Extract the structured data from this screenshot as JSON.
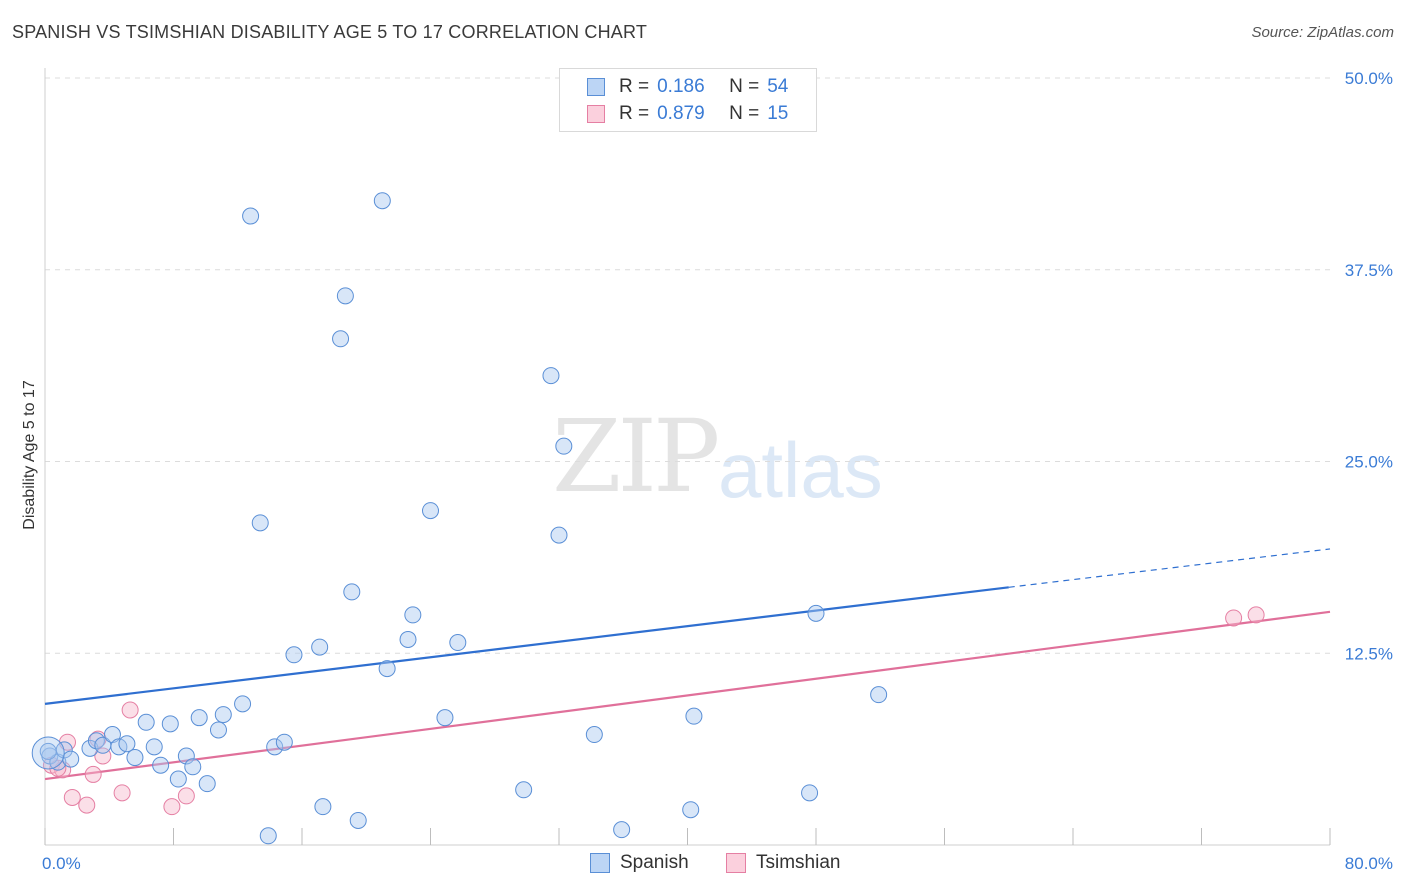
{
  "title": "SPANISH VS TSIMSHIAN DISABILITY AGE 5 TO 17 CORRELATION CHART",
  "source": "Source: ZipAtlas.com",
  "watermark": {
    "zip": "ZIP",
    "atlas": "atlas"
  },
  "legend": {
    "rows": [
      {
        "r_label": "R =",
        "r_value": "0.186",
        "n_label": "N =",
        "n_value": "54"
      },
      {
        "r_label": "R =",
        "r_value": "0.879",
        "n_label": "N =",
        "n_value": "15"
      }
    ]
  },
  "bottom_legend": {
    "spanish": "Spanish",
    "tsimshian": "Tsimshian"
  },
  "chart_data": {
    "type": "scatter",
    "ylabel": "Disability Age 5 to 17",
    "xlim": [
      0,
      80
    ],
    "ylim": [
      0,
      50
    ],
    "x_tick_labels": [
      "0.0%",
      "80.0%"
    ],
    "y_ticks": [
      12.5,
      25.0,
      37.5,
      50.0
    ],
    "y_tick_labels": [
      "12.5%",
      "25.0%",
      "37.5%",
      "50.0%"
    ],
    "grid": true,
    "legend_position": "top-center",
    "colors": {
      "spanish": "#a8c8f0",
      "spanish_edge": "#5a8fd6",
      "spanish_line": "#2f6fd0",
      "tsimshian": "#f7b8cc",
      "tsimshian_edge": "#e57fa3",
      "tsimshian_line": "#e0709a"
    },
    "series": [
      {
        "name": "Spanish",
        "trend": {
          "x0": 0,
          "y0": 9.2,
          "x1": 60,
          "y1": 16.8,
          "x_dash_end": 80,
          "y_dash_end": 19.3
        },
        "points": [
          [
            0.3,
            5.8
          ],
          [
            0.8,
            5.4
          ],
          [
            1.2,
            6.2
          ],
          [
            1.6,
            5.6
          ],
          [
            2.8,
            6.3
          ],
          [
            3.2,
            6.8
          ],
          [
            3.6,
            6.5
          ],
          [
            4.2,
            7.2
          ],
          [
            4.6,
            6.4
          ],
          [
            5.1,
            6.6
          ],
          [
            5.6,
            5.7
          ],
          [
            6.3,
            8.0
          ],
          [
            6.8,
            6.4
          ],
          [
            7.2,
            5.2
          ],
          [
            7.8,
            7.9
          ],
          [
            8.3,
            4.3
          ],
          [
            8.8,
            5.8
          ],
          [
            9.2,
            5.1
          ],
          [
            9.6,
            8.3
          ],
          [
            10.1,
            4.0
          ],
          [
            10.8,
            7.5
          ],
          [
            11.1,
            8.5
          ],
          [
            12.3,
            9.2
          ],
          [
            12.8,
            41.0
          ],
          [
            13.4,
            21.0
          ],
          [
            13.9,
            0.6
          ],
          [
            14.3,
            6.4
          ],
          [
            14.9,
            6.7
          ],
          [
            15.5,
            12.4
          ],
          [
            17.1,
            12.9
          ],
          [
            17.3,
            2.5
          ],
          [
            18.4,
            33.0
          ],
          [
            18.7,
            35.8
          ],
          [
            19.1,
            16.5
          ],
          [
            19.5,
            1.6
          ],
          [
            21.0,
            42.0
          ],
          [
            21.3,
            11.5
          ],
          [
            22.6,
            13.4
          ],
          [
            22.9,
            15.0
          ],
          [
            24.0,
            21.8
          ],
          [
            24.9,
            8.3
          ],
          [
            25.7,
            13.2
          ],
          [
            29.8,
            3.6
          ],
          [
            31.5,
            30.6
          ],
          [
            32.0,
            20.2
          ],
          [
            32.3,
            26.0
          ],
          [
            34.2,
            7.2
          ],
          [
            35.9,
            1.0
          ],
          [
            40.2,
            2.3
          ],
          [
            40.4,
            8.4
          ],
          [
            47.6,
            3.4
          ],
          [
            48.0,
            15.1
          ],
          [
            51.9,
            9.8
          ],
          [
            0.2,
            6.1
          ]
        ]
      },
      {
        "name": "Tsimshian",
        "trend": {
          "x0": 0,
          "y0": 4.3,
          "x1": 80,
          "y1": 15.2
        },
        "points": [
          [
            0.4,
            5.2
          ],
          [
            1.1,
            4.9
          ],
          [
            1.4,
            6.7
          ],
          [
            1.7,
            3.1
          ],
          [
            2.6,
            2.6
          ],
          [
            3.0,
            4.6
          ],
          [
            3.3,
            6.9
          ],
          [
            3.6,
            5.8
          ],
          [
            4.8,
            3.4
          ],
          [
            5.3,
            8.8
          ],
          [
            7.9,
            2.5
          ],
          [
            8.8,
            3.2
          ],
          [
            74.0,
            14.8
          ],
          [
            75.4,
            15.0
          ],
          [
            0.8,
            5.0
          ]
        ]
      }
    ]
  }
}
